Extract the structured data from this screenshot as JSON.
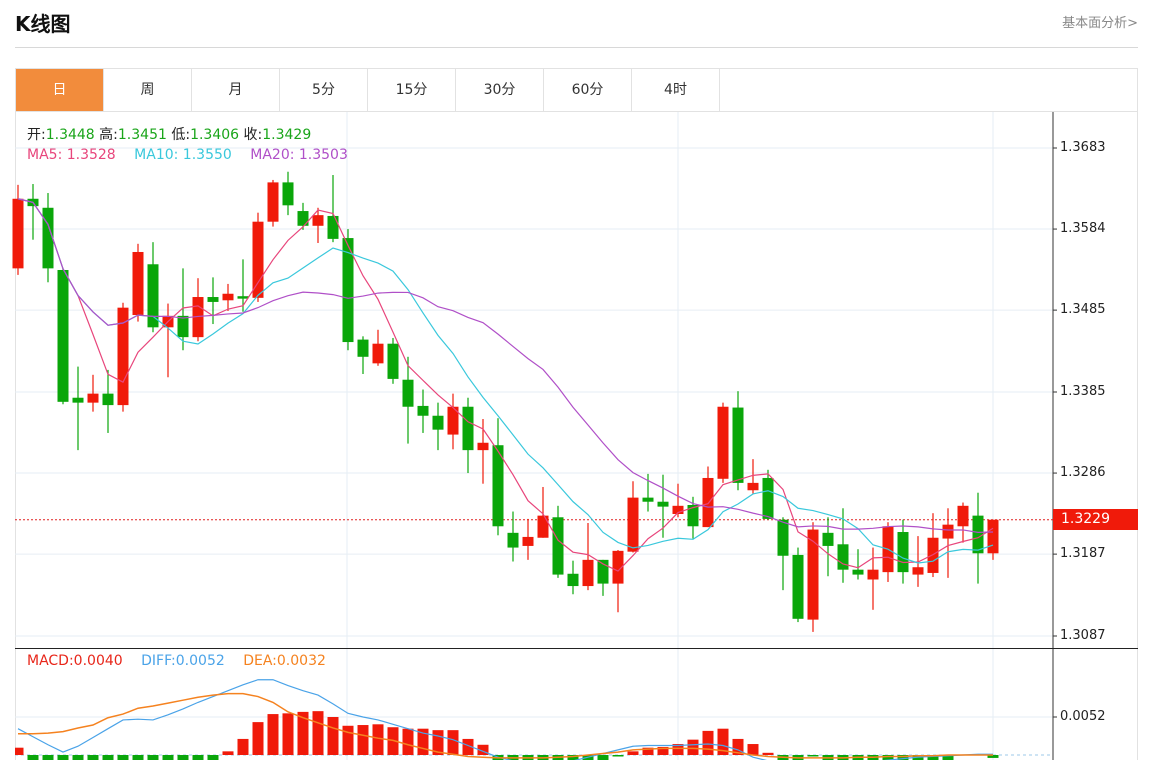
{
  "header": {
    "title": "K线图",
    "fundamental_link": "基本面分析>"
  },
  "tabs": [
    {
      "label": "日",
      "active": true
    },
    {
      "label": "周"
    },
    {
      "label": "月"
    },
    {
      "label": "5分"
    },
    {
      "label": "15分"
    },
    {
      "label": "30分"
    },
    {
      "label": "60分"
    },
    {
      "label": "4时"
    }
  ],
  "ohlc_info": {
    "open_label": "开:",
    "open": "1.3448",
    "high_label": "高:",
    "high": "1.3451",
    "low_label": "低:",
    "low": "1.3406",
    "close_label": "收:",
    "close": "1.3429"
  },
  "ma_info": {
    "ma5": "MA5: 1.3528",
    "ma10": "MA10: 1.3550",
    "ma20": "MA20: 1.3503"
  },
  "macd_info": {
    "macd": "MACD:0.0040",
    "diff": "DIFF:0.0052",
    "dea": "DEA:0.0032"
  },
  "colors": {
    "up": "#f01a0a",
    "down": "#0aa60a",
    "ma5": "#e8467c",
    "ma10": "#3ac8dc",
    "ma20": "#b050c8",
    "diff": "#4aa3e8",
    "dea": "#f5821f",
    "accent": "#f28c3c"
  },
  "chart_data": {
    "type": "candlestick",
    "price_axis": {
      "ticks": [
        "1.3683",
        "1.3584",
        "1.3485",
        "1.3385",
        "1.3286",
        "1.3187",
        "1.3087"
      ],
      "range": [
        1.3087,
        1.3683
      ]
    },
    "current_price": "1.3229",
    "ohlc": [
      [
        1.3536,
        1.3638,
        1.3528,
        1.3621
      ],
      [
        1.3621,
        1.3639,
        1.3571,
        1.3612
      ],
      [
        1.361,
        1.3628,
        1.3519,
        1.3536
      ],
      [
        1.3534,
        1.3536,
        1.337,
        1.3373
      ],
      [
        1.3378,
        1.3416,
        1.3314,
        1.3372
      ],
      [
        1.3372,
        1.3406,
        1.3361,
        1.3383
      ],
      [
        1.3383,
        1.3412,
        1.3335,
        1.3369
      ],
      [
        1.3369,
        1.3494,
        1.3361,
        1.3488
      ],
      [
        1.3479,
        1.3566,
        1.3471,
        1.3556
      ],
      [
        1.3541,
        1.3568,
        1.3458,
        1.3464
      ],
      [
        1.3464,
        1.3493,
        1.3403,
        1.3478
      ],
      [
        1.3478,
        1.3536,
        1.3436,
        1.3452
      ],
      [
        1.3452,
        1.3524,
        1.3447,
        1.3501
      ],
      [
        1.3501,
        1.3525,
        1.3468,
        1.3495
      ],
      [
        1.3497,
        1.3517,
        1.3484,
        1.3505
      ],
      [
        1.3502,
        1.3547,
        1.3483,
        1.3499
      ],
      [
        1.35,
        1.3604,
        1.3495,
        1.3593
      ],
      [
        1.3593,
        1.3644,
        1.3587,
        1.3641
      ],
      [
        1.3641,
        1.3654,
        1.3601,
        1.3613
      ],
      [
        1.3606,
        1.3616,
        1.3583,
        1.3588
      ],
      [
        1.3588,
        1.361,
        1.3567,
        1.3601
      ],
      [
        1.36,
        1.365,
        1.3568,
        1.3572
      ],
      [
        1.3573,
        1.3584,
        1.3436,
        1.3446
      ],
      [
        1.3449,
        1.3453,
        1.3407,
        1.3428
      ],
      [
        1.342,
        1.3461,
        1.3417,
        1.3444
      ],
      [
        1.3444,
        1.3451,
        1.3395,
        1.3401
      ],
      [
        1.34,
        1.3428,
        1.3322,
        1.3367
      ],
      [
        1.3368,
        1.3388,
        1.3335,
        1.3356
      ],
      [
        1.3356,
        1.3372,
        1.3314,
        1.3339
      ],
      [
        1.3333,
        1.3383,
        1.3315,
        1.3367
      ],
      [
        1.3367,
        1.3378,
        1.3286,
        1.3314
      ],
      [
        1.3314,
        1.3352,
        1.3273,
        1.3323
      ],
      [
        1.332,
        1.3353,
        1.321,
        1.3221
      ],
      [
        1.3213,
        1.3239,
        1.3178,
        1.3195
      ],
      [
        1.3197,
        1.323,
        1.318,
        1.3208
      ],
      [
        1.3207,
        1.3269,
        1.3207,
        1.3234
      ],
      [
        1.3232,
        1.3246,
        1.3158,
        1.3162
      ],
      [
        1.3163,
        1.3179,
        1.3138,
        1.3148
      ],
      [
        1.3148,
        1.3225,
        1.3143,
        1.318
      ],
      [
        1.318,
        1.318,
        1.3136,
        1.3151
      ],
      [
        1.3151,
        1.3192,
        1.3116,
        1.3191
      ],
      [
        1.319,
        1.3276,
        1.3189,
        1.3256
      ],
      [
        1.3256,
        1.3285,
        1.3239,
        1.3251
      ],
      [
        1.3251,
        1.3284,
        1.3207,
        1.3245
      ],
      [
        1.3236,
        1.3273,
        1.3232,
        1.3246
      ],
      [
        1.3247,
        1.3257,
        1.3206,
        1.3221
      ],
      [
        1.322,
        1.3294,
        1.322,
        1.328
      ],
      [
        1.3279,
        1.3372,
        1.3274,
        1.3367
      ],
      [
        1.3366,
        1.3386,
        1.3265,
        1.3274
      ],
      [
        1.3265,
        1.3303,
        1.3261,
        1.3274
      ],
      [
        1.328,
        1.329,
        1.3229,
        1.323
      ],
      [
        1.3229,
        1.3232,
        1.3143,
        1.3185
      ],
      [
        1.3186,
        1.3195,
        1.3104,
        1.3108
      ],
      [
        1.3107,
        1.3226,
        1.3092,
        1.3217
      ],
      [
        1.3213,
        1.3232,
        1.316,
        1.3197
      ],
      [
        1.3199,
        1.3243,
        1.3152,
        1.3168
      ],
      [
        1.3168,
        1.3193,
        1.3156,
        1.3162
      ],
      [
        1.3156,
        1.3195,
        1.3119,
        1.3168
      ],
      [
        1.3165,
        1.3226,
        1.3153,
        1.3221
      ],
      [
        1.3214,
        1.3229,
        1.3151,
        1.3165
      ],
      [
        1.3162,
        1.3209,
        1.3147,
        1.3171
      ],
      [
        1.3164,
        1.3237,
        1.3159,
        1.3207
      ],
      [
        1.3206,
        1.3243,
        1.3158,
        1.3223
      ],
      [
        1.3221,
        1.325,
        1.3201,
        1.3246
      ],
      [
        1.3234,
        1.3262,
        1.3151,
        1.3188
      ],
      [
        1.3188,
        1.3229,
        1.318,
        1.3229
      ]
    ],
    "macd_axis": {
      "ticks": [
        "0.0052"
      ]
    },
    "macd_hist": [
      0.001,
      -0.0008,
      -0.0008,
      -0.0008,
      -0.0008,
      -0.0008,
      -0.0008,
      -0.0008,
      -0.0008,
      -0.0008,
      -0.0008,
      -0.0008,
      -0.0008,
      -0.0008,
      0.0005,
      0.0022,
      0.0045,
      0.0056,
      0.0057,
      0.0059,
      0.006,
      0.0052,
      0.004,
      0.0041,
      0.0042,
      0.0038,
      0.0036,
      0.0036,
      0.0034,
      0.0034,
      0.0022,
      0.0014,
      -0.0008,
      -0.0008,
      -0.0008,
      -0.0008,
      -0.0008,
      -0.0008,
      -0.0008,
      -0.0008,
      -0.0002,
      0.0005,
      0.001,
      0.0011,
      0.0015,
      0.0021,
      0.0033,
      0.0036,
      0.0022,
      0.0015,
      0.0003,
      -0.0008,
      -0.0008,
      -0.0001,
      -0.0008,
      -0.0008,
      -0.0008,
      -0.0008,
      -0.0008,
      -0.0008,
      -0.0008,
      -0.0008,
      -0.0008,
      0,
      0,
      -0.0004
    ],
    "diff": [
      0.0036,
      0.0025,
      0.0014,
      0.0004,
      0.0012,
      0.0024,
      0.0036,
      0.0048,
      0.0049,
      0.0048,
      0.0055,
      0.0063,
      0.0072,
      0.008,
      0.0088,
      0.0096,
      0.0103,
      0.0103,
      0.0095,
      0.0088,
      0.0082,
      0.007,
      0.0057,
      0.0052,
      0.0048,
      0.0042,
      0.0036,
      0.003,
      0.0026,
      0.0021,
      0.0013,
      0.0005,
      -0.0003,
      -0.0008,
      -0.0012,
      -0.0014,
      -0.0012,
      -0.0008,
      -0.0003,
      0.0002,
      0.0007,
      0.0012,
      0.0013,
      0.0013,
      0.0013,
      0.0014,
      0.0015,
      0.0013,
      0.0007,
      -0.0003,
      -0.0008,
      -0.0012,
      -0.0015,
      -0.0016,
      -0.0015,
      -0.0013,
      -0.0011,
      -0.0009,
      -0.0007,
      -0.0005,
      -0.0003,
      -0.0002,
      -0.0001,
      0,
      0.0001,
      0.0001
    ],
    "dea": [
      0.0029,
      0.0029,
      0.003,
      0.0032,
      0.0037,
      0.0041,
      0.0051,
      0.0056,
      0.0064,
      0.0067,
      0.0071,
      0.0075,
      0.0079,
      0.0082,
      0.0084,
      0.0084,
      0.008,
      0.0072,
      0.0059,
      0.0051,
      0.0044,
      0.0037,
      0.0031,
      0.0027,
      0.0023,
      0.002,
      0.0014,
      0.0009,
      0.0004,
      0.0001,
      -0.0002,
      -0.0003,
      -0.0004,
      -0.0004,
      -0.0004,
      -0.0004,
      -0.0003,
      -0.0002,
      0,
      0.0002,
      0.0004,
      0.0007,
      0.0008,
      0.0009,
      0.0009,
      0.0009,
      0.0008,
      0.0006,
      0.0003,
      0,
      -0.0002,
      -0.0003,
      -0.0004,
      -0.0004,
      -0.0004,
      -0.0004,
      -0.0003,
      -0.0003,
      -0.0002,
      -0.0002,
      -0.0001,
      -0.0001,
      0,
      0,
      0,
      0
    ]
  }
}
